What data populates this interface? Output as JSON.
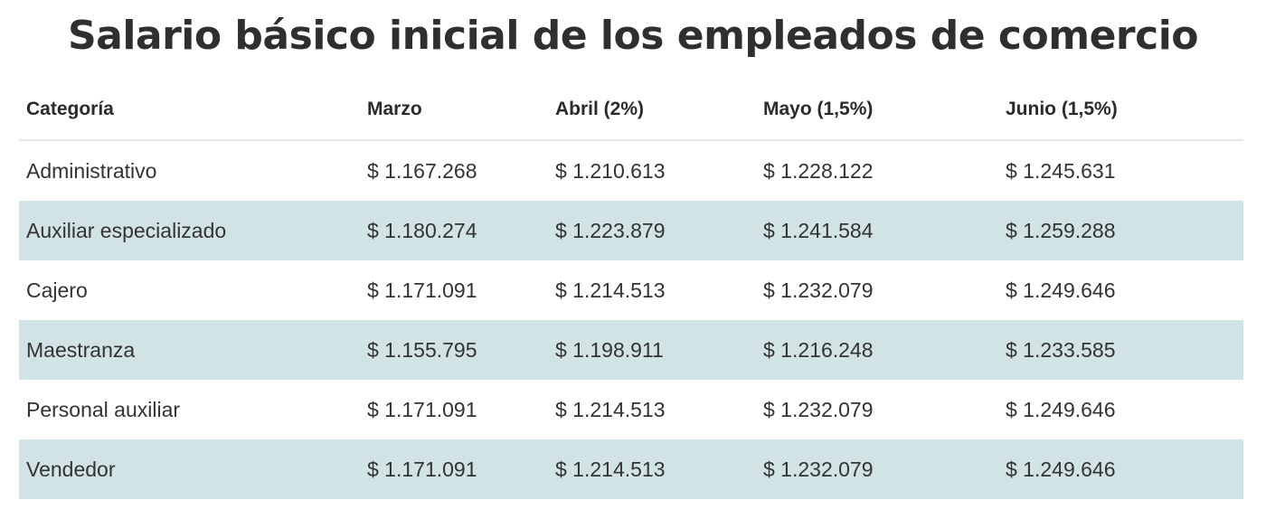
{
  "title": "Salario básico inicial de los empleados de comercio",
  "chart_data": {
    "type": "table",
    "columns": [
      "Categoría",
      "Marzo",
      "Abril (2%)",
      "Mayo (1,5%)",
      "Junio (1,5%)"
    ],
    "rows": [
      [
        "Administrativo",
        "$ 1.167.268",
        "$ 1.210.613",
        "$ 1.228.122",
        "$ 1.245.631"
      ],
      [
        "Auxiliar especializado",
        "$ 1.180.274",
        "$ 1.223.879",
        "$ 1.241.584",
        "$ 1.259.288"
      ],
      [
        "Cajero",
        "$ 1.171.091",
        "$ 1.214.513",
        "$ 1.232.079",
        "$ 1.249.646"
      ],
      [
        "Maestranza",
        "$ 1.155.795",
        "$ 1.198.911",
        "$ 1.216.248",
        "$ 1.233.585"
      ],
      [
        "Personal auxiliar",
        "$ 1.171.091",
        "$ 1.214.513",
        "$ 1.232.079",
        "$ 1.249.646"
      ],
      [
        "Vendedor",
        "$ 1.171.091",
        "$ 1.214.513",
        "$ 1.232.079",
        "$ 1.249.646"
      ]
    ]
  },
  "colors": {
    "stripe": "#d2e3e6",
    "text": "#333333",
    "title": "#2f2f2f"
  }
}
